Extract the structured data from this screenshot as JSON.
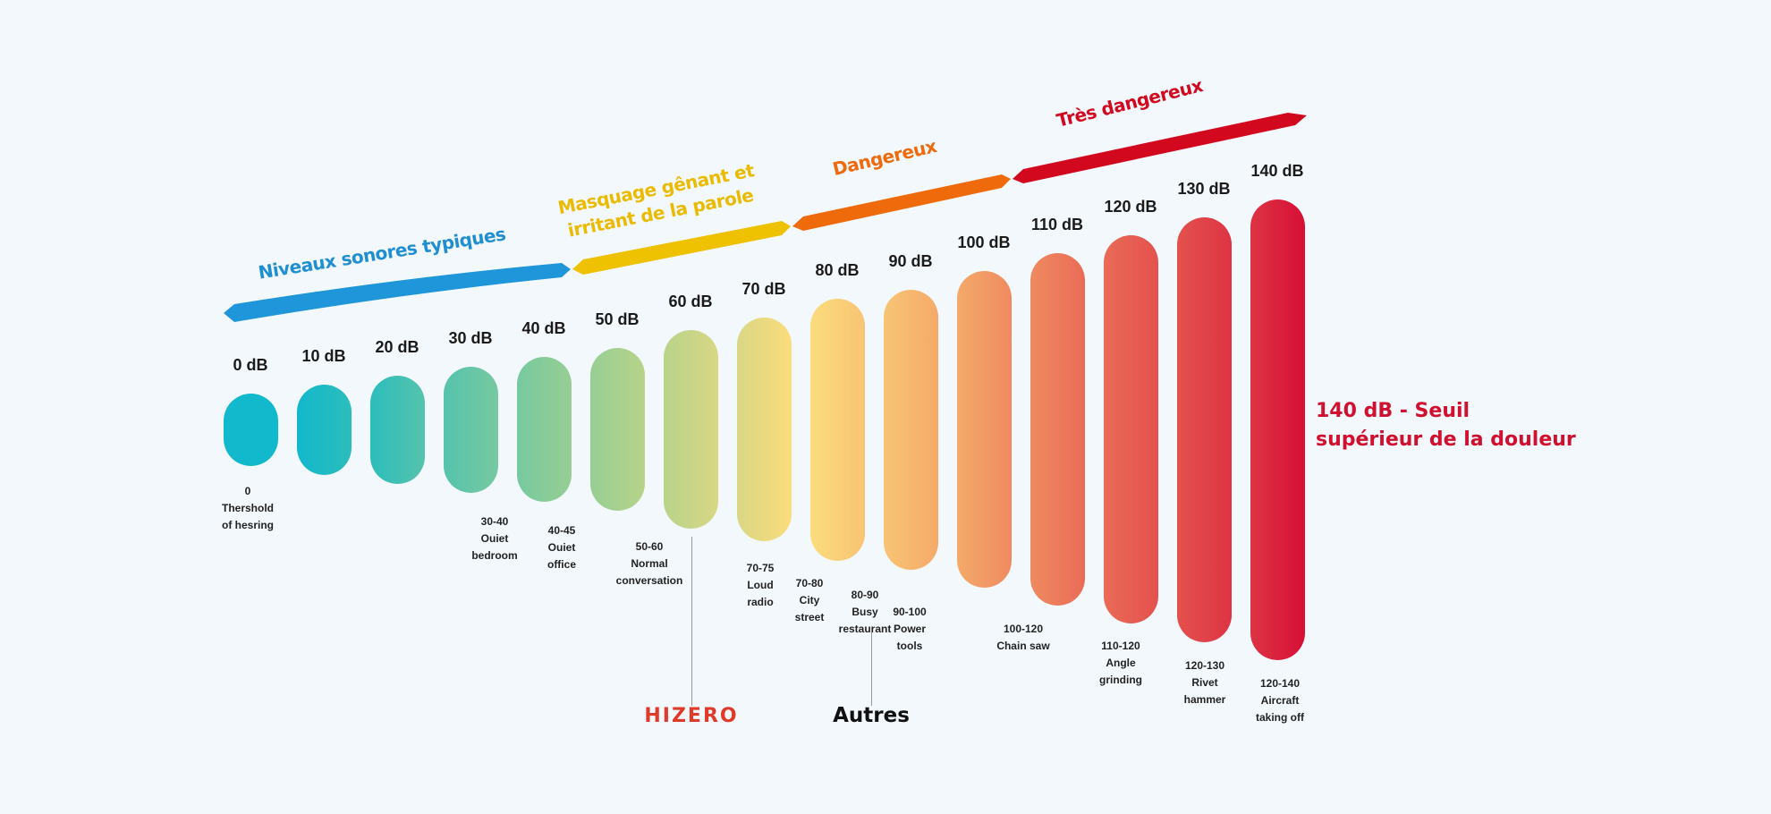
{
  "bands": [
    {
      "label": "Niveaux sonores typiques",
      "color": "#1f96d9"
    },
    {
      "label_line1": "Masquage gênant et",
      "label_line2": "irritant de la parole",
      "color": "#eec200"
    },
    {
      "label": "Dangereux",
      "color": "#ee6a0a"
    },
    {
      "label": "Très dangereux",
      "color": "#d2081f"
    }
  ],
  "levels": [
    {
      "db": "0 dB",
      "color": "#12b8cc"
    },
    {
      "db": "10 dB",
      "color": "#2cbdbb"
    },
    {
      "db": "20 dB",
      "color": "#55c3ad"
    },
    {
      "db": "30 dB",
      "color": "#77c9a0"
    },
    {
      "db": "40 dB",
      "color": "#97ce93"
    },
    {
      "db": "50 dB",
      "color": "#b8d38a"
    },
    {
      "db": "60 dB",
      "color": "#d9d785"
    },
    {
      "db": "70 dB",
      "color": "#fbdc7c"
    },
    {
      "db": "80 dB",
      "color": "#f8c474"
    },
    {
      "db": "90 dB",
      "color": "#f4aa6a"
    },
    {
      "db": "100 dB",
      "color": "#ef8a60"
    },
    {
      "db": "110 dB",
      "color": "#ea6b57"
    },
    {
      "db": "120 dB",
      "color": "#e4514e"
    },
    {
      "db": "130 dB",
      "color": "#dd3444"
    },
    {
      "db": "140 dB",
      "color": "#d70f36"
    }
  ],
  "examples": [
    {
      "range": "0",
      "line1": "Thershold",
      "line2": "of hesring"
    },
    {
      "range": "30-40",
      "line1": "Ouiet",
      "line2": "bedroom"
    },
    {
      "range": "40-45",
      "line1": "Ouiet",
      "line2": "office"
    },
    {
      "range": "50-60",
      "line1": "Normal",
      "line2": "conversation"
    },
    {
      "range": "70-75",
      "line1": "Loud",
      "line2": "radio"
    },
    {
      "range": "70-80",
      "line1": "City",
      "line2": "street"
    },
    {
      "range": "80-90",
      "line1": "Busy",
      "line2": "restaurant"
    },
    {
      "range": "90-100",
      "line1": "Power",
      "line2": "tools"
    },
    {
      "range": "100-120",
      "line1": "Chain saw"
    },
    {
      "range": "110-120",
      "line1": "Angle",
      "line2": "grinding"
    },
    {
      "range": "120-130",
      "line1": "Rivet",
      "line2": "hammer"
    },
    {
      "range": "120-140",
      "line1": "Aircraft",
      "line2": "taking off"
    }
  ],
  "pain_threshold": {
    "line1": "140 dB - Seuil",
    "line2": "supérieur de la douleur"
  },
  "markers": {
    "brand": "HIZERO",
    "others": "Autres"
  }
}
